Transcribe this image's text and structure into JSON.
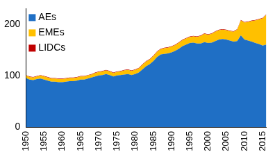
{
  "chart_data": {
    "type": "area",
    "stacked": true,
    "x": [
      1950,
      1951,
      1952,
      1953,
      1954,
      1955,
      1956,
      1957,
      1958,
      1959,
      1960,
      1961,
      1962,
      1963,
      1964,
      1965,
      1966,
      1967,
      1968,
      1969,
      1970,
      1971,
      1972,
      1973,
      1974,
      1975,
      1976,
      1977,
      1978,
      1979,
      1980,
      1981,
      1982,
      1983,
      1984,
      1985,
      1986,
      1987,
      1988,
      1989,
      1990,
      1991,
      1992,
      1993,
      1994,
      1995,
      1996,
      1997,
      1998,
      1999,
      2000,
      2001,
      2002,
      2003,
      2004,
      2005,
      2006,
      2007,
      2008,
      2009,
      2010,
      2011,
      2012,
      2013,
      2014,
      2015,
      2016
    ],
    "series": [
      {
        "name": "AEs",
        "color": "#1f6fc5",
        "values": [
          95,
          92,
          91,
          93,
          94,
          92,
          90,
          88,
          88,
          87,
          87,
          88,
          89,
          89,
          90,
          92,
          92,
          94,
          96,
          98,
          100,
          101,
          103,
          101,
          98,
          100,
          101,
          102,
          103,
          101,
          103,
          106,
          112,
          118,
          122,
          128,
          136,
          141,
          142,
          143,
          145,
          148,
          152,
          157,
          160,
          163,
          164,
          162,
          162,
          165,
          163,
          164,
          167,
          170,
          171,
          170,
          168,
          166,
          167,
          178,
          170,
          168,
          166,
          163,
          161,
          158,
          160
        ]
      },
      {
        "name": "EMEs",
        "color": "#ffc000",
        "values": [
          5,
          5,
          5,
          5,
          6,
          6,
          6,
          6,
          6,
          6,
          6,
          6,
          6,
          6,
          6,
          6,
          6,
          6,
          6,
          7,
          7,
          7,
          7,
          7,
          7,
          7,
          7,
          8,
          8,
          8,
          8,
          8,
          9,
          9,
          9,
          10,
          10,
          10,
          11,
          11,
          11,
          11,
          12,
          12,
          12,
          12,
          12,
          13,
          15,
          16,
          16,
          17,
          18,
          18,
          18,
          18,
          18,
          19,
          22,
          29,
          33,
          36,
          40,
          44,
          48,
          53,
          58
        ]
      },
      {
        "name": "LIDCs",
        "color": "#c00000",
        "values": [
          1,
          1,
          1,
          1,
          1,
          1,
          1,
          1,
          1,
          1,
          1,
          1,
          1,
          1,
          1,
          1,
          1,
          1,
          1,
          1,
          1,
          1,
          1,
          1,
          1,
          1,
          1,
          1,
          1,
          1,
          1,
          1,
          1,
          1,
          1,
          1,
          1,
          1,
          1,
          1,
          1,
          1,
          1,
          1,
          1,
          1,
          1,
          1,
          1,
          1,
          1,
          1,
          1,
          1,
          1,
          1,
          1,
          1,
          1,
          1,
          1,
          1,
          1,
          1,
          1,
          1,
          1
        ]
      }
    ],
    "xlim": [
      1950,
      2016
    ],
    "xticks": [
      1950,
      1955,
      1960,
      1965,
      1970,
      1975,
      1980,
      1985,
      1990,
      1995,
      2000,
      2005,
      2010,
      2015
    ],
    "ylim": [
      0,
      230
    ],
    "yticks": [
      0,
      100,
      200
    ],
    "grid": false,
    "legend": "upper left"
  }
}
